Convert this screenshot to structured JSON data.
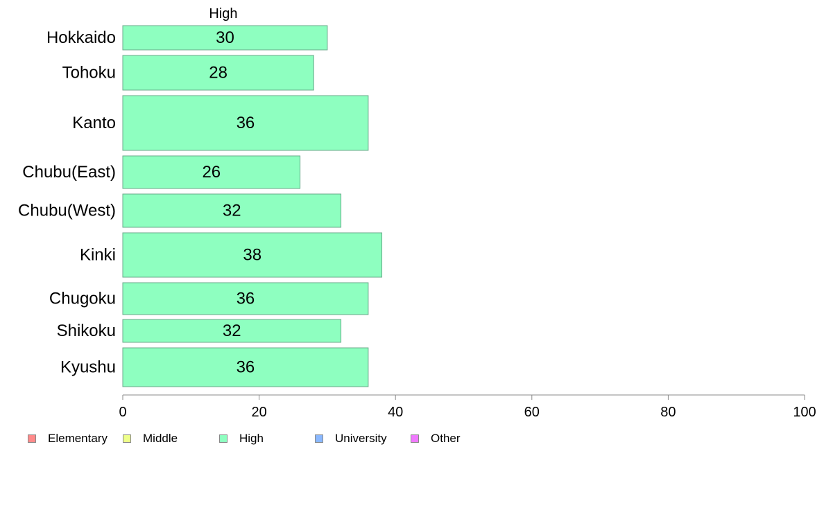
{
  "chart_data": {
    "type": "bar",
    "orientation": "horizontal",
    "title": "High",
    "categories": [
      "Hokkaido",
      "Tohoku",
      "Kanto",
      "Chubu(East)",
      "Chubu(West)",
      "Kinki",
      "Chugoku",
      "Shikoku",
      "Kyushu"
    ],
    "series": [
      {
        "name": "High",
        "values": [
          30,
          28,
          36,
          26,
          32,
          38,
          36,
          32,
          36
        ],
        "color": "#8effc0"
      }
    ],
    "xlim": [
      0,
      100
    ],
    "xticks": [
      0,
      20,
      40,
      60,
      80,
      100
    ],
    "xlabel": "",
    "ylabel": "",
    "grid": false,
    "legend_position": "bottom-left"
  },
  "legend": {
    "items": [
      {
        "label": "Elementary",
        "color": "#ff8a8a"
      },
      {
        "label": "Middle",
        "color": "#eeff8a"
      },
      {
        "label": "High",
        "color": "#8effc0"
      },
      {
        "label": "University",
        "color": "#8ab8ff"
      },
      {
        "label": "Other",
        "color": "#f07aff"
      }
    ]
  }
}
